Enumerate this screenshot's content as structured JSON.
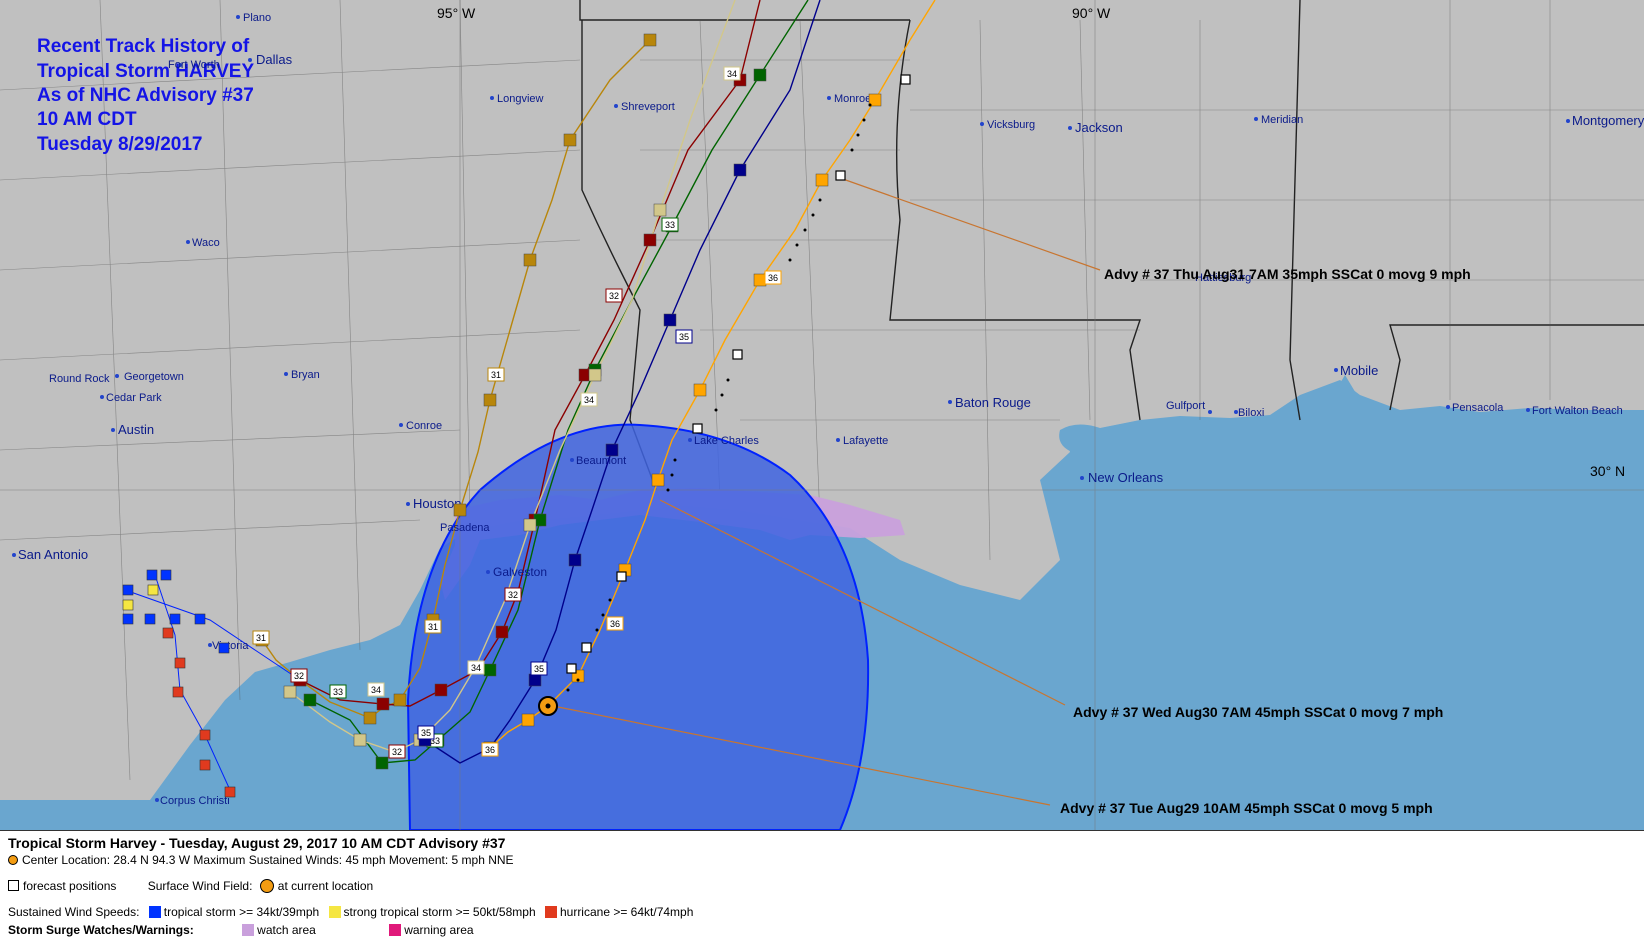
{
  "map": {
    "title_lines": [
      "Recent Track History of",
      "Tropical Storm HARVEY",
      "As of NHC Advisory #37",
      "10 AM CDT",
      "Tuesday 8/29/2017"
    ],
    "lon_labels": [
      "95° W",
      "90° W"
    ],
    "lat_labels": [
      "30° N"
    ],
    "cities": [
      "Plano",
      "Dallas",
      "Fort Worth",
      "Longview",
      "Shreveport",
      "Monroe",
      "Vicksburg",
      "Jackson",
      "Meridian",
      "Montgomery",
      "Waco",
      "Round Rock",
      "Georgetown",
      "Cedar Park",
      "Austin",
      "Bryan",
      "Conroe",
      "Houston",
      "Pasadena",
      "Galveston",
      "Beaumont",
      "Lake Charles",
      "Lafayette",
      "Baton Rouge",
      "New Orleans",
      "Gulfport",
      "Biloxi",
      "Mobile",
      "Pensacola",
      "Fort Walton Beach",
      "Hattiesburg",
      "San Antonio",
      "Victoria",
      "Corpus Christi"
    ],
    "advisory_labels": [
      "Advy # 37 Thu Aug31 7AM  35mph SSCat 0 movg 9 mph",
      "Advy # 37 Wed Aug30 7AM  45mph SSCat 0 movg 7 mph",
      "Advy # 37 Tue Aug29 10AM  45mph SSCat 0 movg 5 mph"
    ],
    "track_numbers": [
      "31",
      "32",
      "33",
      "34",
      "35",
      "36"
    ],
    "colors": {
      "land": "#c0c0c0",
      "water": "#6aa6cf",
      "wind_field": "#3f64e0",
      "watch": "#c9a0dc",
      "track_31": "#b8860b",
      "track_32": "#8b0000",
      "track_33": "#006400",
      "track_34": "#d2c78a",
      "track_35": "#00008b",
      "track_36": "#ffa500",
      "title": "#1414e6"
    }
  },
  "legend": {
    "title": "Tropical Storm Harvey  -  Tuesday, August 29, 2017  10 AM CDT   Advisory #37",
    "center_line": "Center Location: 28.4 N  94.3 W   Maximum Sustained Winds: 45 mph  Movement: 5 mph NNE",
    "forecast_positions": "forecast positions",
    "surface_wind_field": "Surface Wind Field:",
    "at_current_location": "at current location",
    "sustained_label": "Sustained Wind Speeds:",
    "ts_label": "tropical storm >= 34kt/39mph",
    "sts_label": "strong tropical storm >= 50kt/58mph",
    "hu_label": "hurricane >= 64kt/74mph",
    "surge_label": "Storm Surge Watches/Warnings:",
    "watch_label": "watch area",
    "warning_label": "warning area",
    "swatch_colors": {
      "ts": "#0033ff",
      "sts": "#f5e642",
      "hu": "#e03a1e",
      "watch": "#c9a0dc",
      "warning": "#e0197a"
    }
  }
}
